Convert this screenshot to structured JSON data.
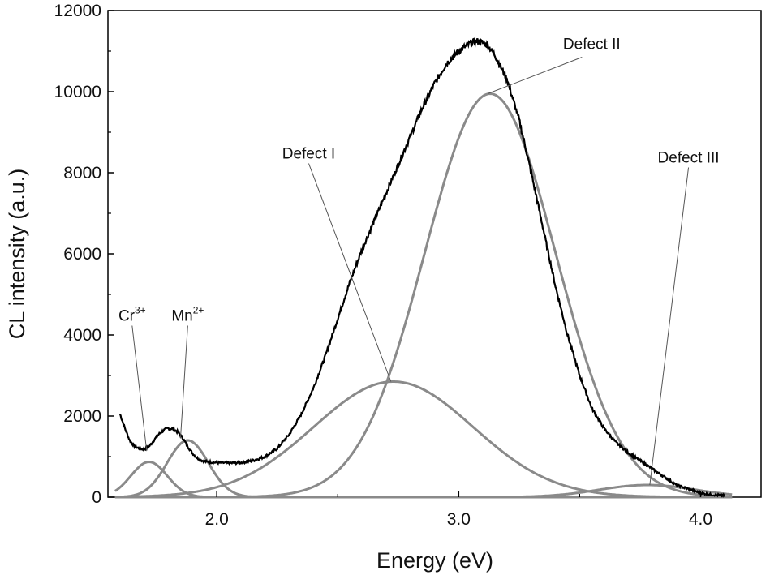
{
  "chart_data": {
    "type": "line",
    "xlabel": "Energy (eV)",
    "ylabel": "CL intensity (a.u.)",
    "xlim": [
      1.55,
      4.25
    ],
    "ylim": [
      0,
      12000
    ],
    "xticks": [
      2.0,
      3.0,
      4.0
    ],
    "xtick_labels": [
      "2.0",
      "3.0",
      "4.0"
    ],
    "yticks": [
      0,
      2000,
      4000,
      6000,
      8000,
      10000,
      12000
    ],
    "ytick_labels": [
      "0",
      "2000",
      "4000",
      "6000",
      "8000",
      "10000",
      "12000"
    ],
    "grid": false,
    "colors": {
      "measured": "#000000",
      "fit": "#8a8a8a"
    },
    "measured": {
      "x": [
        1.6,
        1.62,
        1.64,
        1.66,
        1.68,
        1.7,
        1.72,
        1.74,
        1.76,
        1.78,
        1.8,
        1.82,
        1.84,
        1.86,
        1.88,
        1.9,
        1.92,
        1.94,
        1.96,
        1.98,
        2.0,
        2.05,
        2.1,
        2.15,
        2.2,
        2.25,
        2.3,
        2.35,
        2.4,
        2.45,
        2.5,
        2.55,
        2.6,
        2.65,
        2.7,
        2.75,
        2.8,
        2.85,
        2.9,
        2.95,
        3.0,
        3.05,
        3.08,
        3.1,
        3.12,
        3.15,
        3.2,
        3.25,
        3.3,
        3.35,
        3.4,
        3.45,
        3.5,
        3.55,
        3.6,
        3.65,
        3.7,
        3.75,
        3.8,
        3.85,
        3.9,
        3.95,
        4.0,
        4.05,
        4.1
      ],
      "y": [
        2050,
        1700,
        1400,
        1250,
        1200,
        1180,
        1250,
        1400,
        1550,
        1650,
        1700,
        1680,
        1600,
        1450,
        1250,
        1080,
        960,
        900,
        870,
        860,
        850,
        840,
        850,
        900,
        1000,
        1200,
        1550,
        2050,
        2700,
        3500,
        4400,
        5300,
        6100,
        6800,
        7500,
        8200,
        8900,
        9600,
        10200,
        10700,
        11000,
        11200,
        11250,
        11200,
        11150,
        10900,
        10300,
        9300,
        8000,
        6600,
        5200,
        4000,
        3000,
        2200,
        1700,
        1350,
        1100,
        900,
        700,
        500,
        300,
        200,
        100,
        60,
        40
      ]
    },
    "components": [
      {
        "center": 1.72,
        "amplitude": 870,
        "sigma": 0.075
      },
      {
        "center": 1.88,
        "amplitude": 1400,
        "sigma": 0.085
      },
      {
        "center": 2.73,
        "amplitude": 2850,
        "sigma": 0.33
      },
      {
        "center": 3.13,
        "amplitude": 9950,
        "sigma": 0.27
      },
      {
        "center": 3.78,
        "amplitude": 300,
        "sigma": 0.2
      }
    ],
    "annotations": [
      {
        "base": "Cr",
        "sup": "3+",
        "label_x": 1.65,
        "label_y": 4350,
        "point_x": 1.71,
        "point_y": 1150
      },
      {
        "base": "Mn",
        "sup": "2+",
        "label_x": 1.88,
        "label_y": 4350,
        "point_x": 1.85,
        "point_y": 1450
      },
      {
        "base": "Defect I",
        "sup": "",
        "label_x": 2.38,
        "label_y": 8350,
        "point_x": 2.72,
        "point_y": 2850
      },
      {
        "base": "Defect II",
        "sup": "",
        "label_x": 3.55,
        "label_y": 11050,
        "point_x": 3.12,
        "point_y": 9950
      },
      {
        "base": "Defect III",
        "sup": "",
        "label_x": 3.95,
        "label_y": 8250,
        "point_x": 3.79,
        "point_y": 300
      }
    ]
  }
}
